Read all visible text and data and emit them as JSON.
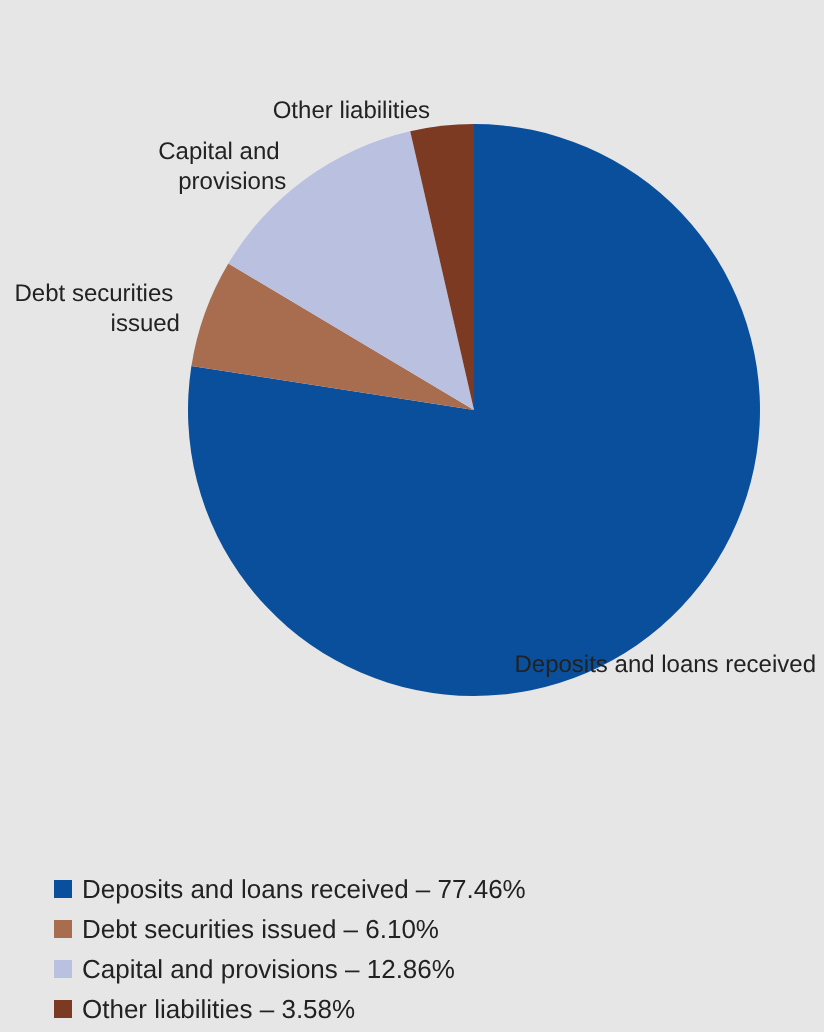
{
  "chart_data": {
    "type": "pie",
    "categories": [
      "Deposits and loans received – 77.46%",
      "Debt securities issued – 6.10%",
      "Capital and provisions – 12.86%",
      "Other liabilities – 3.58%"
    ],
    "values": [
      77.46,
      6.1,
      12.86,
      3.58
    ],
    "colors": [
      "#0a4f9c",
      "#a86c4f",
      "#b9c0e0",
      "#7b3a21"
    ],
    "annotations": [
      "Deposits and loans received",
      "Debt securities issued",
      "Capital and provisions",
      "Other liabilities"
    ],
    "legend": "bottom left"
  }
}
